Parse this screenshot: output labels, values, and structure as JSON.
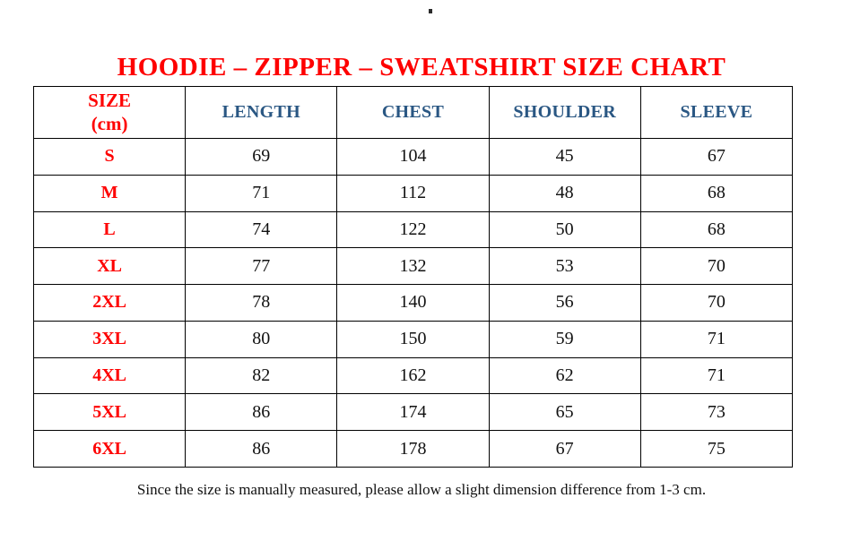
{
  "page": {
    "background_color": "#ffffff",
    "stray_dot": "."
  },
  "title": {
    "text": "HOODIE – ZIPPER – SWEATSHIRT SIZE CHART",
    "color": "#fe0000"
  },
  "size_chart": {
    "unit_header": "SIZE\n(cm)",
    "columns": [
      "LENGTH",
      "CHEST",
      "SHOULDER",
      "SLEEVE"
    ],
    "rows": [
      {
        "size": "S",
        "length": "69",
        "chest": "104",
        "shoulder": "45",
        "sleeve": "67"
      },
      {
        "size": "M",
        "length": "71",
        "chest": "112",
        "shoulder": "48",
        "sleeve": "68"
      },
      {
        "size": "L",
        "length": "74",
        "chest": "122",
        "shoulder": "50",
        "sleeve": "68"
      },
      {
        "size": "XL",
        "length": "77",
        "chest": "132",
        "shoulder": "53",
        "sleeve": "70"
      },
      {
        "size": "2XL",
        "length": "78",
        "chest": "140",
        "shoulder": "56",
        "sleeve": "70"
      },
      {
        "size": "3XL",
        "length": "80",
        "chest": "150",
        "shoulder": "59",
        "sleeve": "71"
      },
      {
        "size": "4XL",
        "length": "82",
        "chest": "162",
        "shoulder": "62",
        "sleeve": "71"
      },
      {
        "size": "5XL",
        "length": "86",
        "chest": "174",
        "shoulder": "65",
        "sleeve": "73"
      },
      {
        "size": "6XL",
        "length": "86",
        "chest": "178",
        "shoulder": "67",
        "sleeve": "75"
      }
    ],
    "colors": {
      "size_text": "#fe0000",
      "column_header_text": "#2a5783",
      "value_text": "#111111",
      "border": "#000000"
    }
  },
  "footnote": {
    "text": "Since the size is manually measured, please allow a slight dimension difference from 1-3 cm."
  }
}
